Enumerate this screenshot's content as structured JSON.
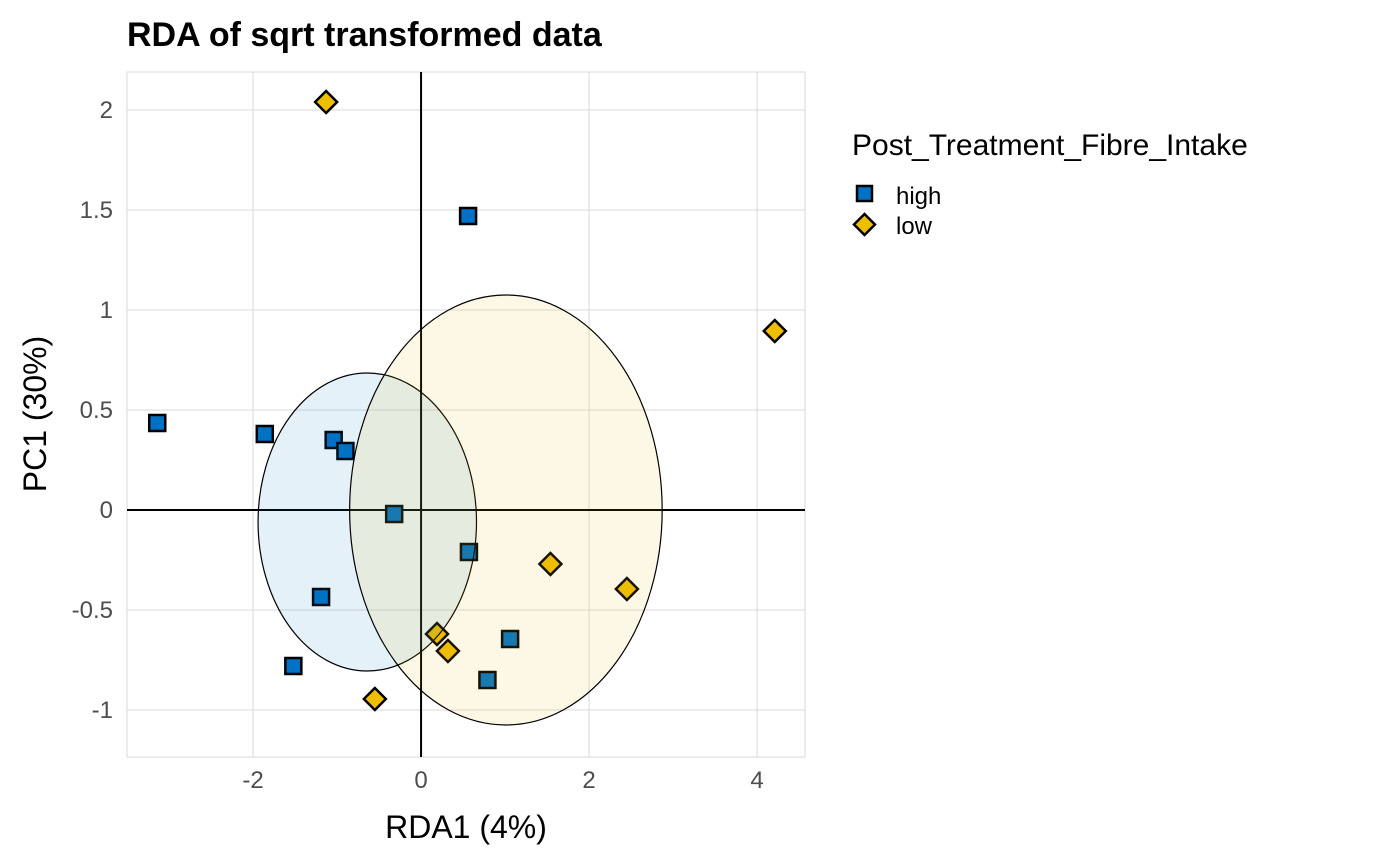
{
  "chart_data": {
    "type": "scatter",
    "title": "RDA of sqrt transformed data",
    "xlabel": "RDA1 (4%)",
    "ylabel": "PC1 (30%)",
    "xlim": [
      -3.5,
      4.57
    ],
    "ylim": [
      -1.235,
      2.19
    ],
    "xticks": [
      -2,
      0,
      2,
      4
    ],
    "xtick_labels": [
      "-2",
      "0",
      "2",
      "4"
    ],
    "yticks": [
      -1,
      -0.5,
      0,
      0.5,
      1,
      1.5,
      2
    ],
    "ytick_labels": [
      "-1",
      "-0.5",
      "0",
      "0.5",
      "1",
      "1.5",
      "2"
    ],
    "grid": true,
    "legend": {
      "title": "Post_Treatment_Fibre_Intake",
      "placement": "right",
      "entries": [
        "high",
        "low"
      ]
    },
    "series": [
      {
        "name": "high",
        "color": "#0072C6",
        "marker": "square",
        "points": [
          [
            0.56,
            1.47
          ],
          [
            -3.14,
            0.435
          ],
          [
            -1.86,
            0.38
          ],
          [
            -1.04,
            0.35
          ],
          [
            -0.9,
            0.295
          ],
          [
            -0.32,
            -0.02
          ],
          [
            0.57,
            -0.21
          ],
          [
            -1.19,
            -0.435
          ],
          [
            1.06,
            -0.645
          ],
          [
            -1.52,
            -0.78
          ],
          [
            0.79,
            -0.85
          ]
        ],
        "ellipse": {
          "cx": -0.64,
          "cy": -0.06,
          "rx": 1.3,
          "ry": 0.745,
          "fill": "#0072C6"
        }
      },
      {
        "name": "low",
        "color": "#F0BE00",
        "marker": "diamond",
        "points": [
          [
            -1.13,
            2.04
          ],
          [
            4.21,
            0.895
          ],
          [
            1.54,
            -0.27
          ],
          [
            2.45,
            -0.395
          ],
          [
            0.19,
            -0.62
          ],
          [
            0.32,
            -0.705
          ],
          [
            -0.55,
            -0.945
          ]
        ],
        "ellipse": {
          "cx": 1.01,
          "cy": 0.0,
          "rx": 1.86,
          "ry": 1.075,
          "fill": "#F0BE00"
        }
      }
    ]
  }
}
